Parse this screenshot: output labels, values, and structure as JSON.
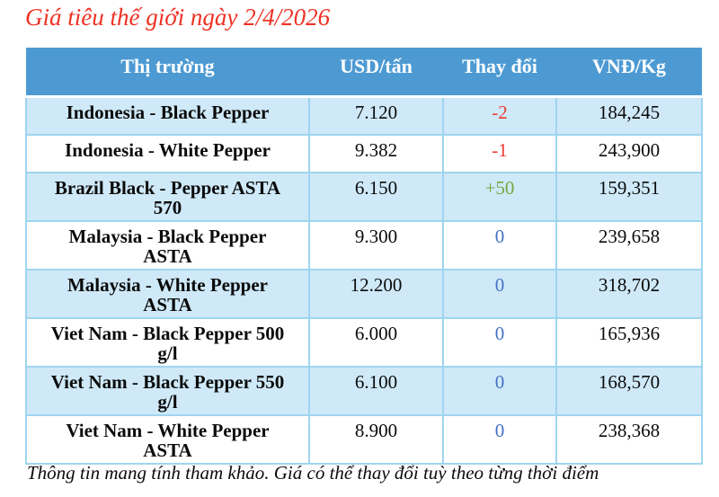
{
  "title": "Giá tiêu thế giới ngày 2/4/2026",
  "disclaimer": "Thông tin mang tính tham khảo. Giá có thể thay đổi tuỳ theo từng thời điểm",
  "colors": {
    "header_bg": "#4d9ad3",
    "row_alt_bg": "#cfe9f8",
    "border": "#9fd5ef",
    "title": "#ee3124",
    "change_down": "#ee3a30",
    "change_up": "#76a841",
    "change_zero": "#4472c4",
    "header_text": "#ffffff",
    "body_text": "#0b0b0b"
  },
  "chart_data": {
    "type": "table",
    "title": "Giá tiêu thế giới ngày 2/4/2026",
    "columns": [
      "Thị trường",
      "USD/tấn",
      "Thay đổi",
      "VNĐ/Kg"
    ],
    "rows": [
      {
        "market": "Indonesia - Black Pepper",
        "usd": "7.120",
        "change": "-2",
        "change_direction": "down",
        "vnd": "184,245"
      },
      {
        "market": "Indonesia - White Pepper",
        "usd": "9.382",
        "change": "-1",
        "change_direction": "down",
        "vnd": "243,900"
      },
      {
        "market": "Brazil Black - Pepper ASTA 570",
        "usd": "6.150",
        "change": "+50",
        "change_direction": "up",
        "vnd": "159,351"
      },
      {
        "market": "Malaysia - Black Pepper ASTA",
        "usd": "9.300",
        "change": "0",
        "change_direction": "zero",
        "vnd": "239,658"
      },
      {
        "market": "Malaysia - White Pepper ASTA",
        "usd": "12.200",
        "change": "0",
        "change_direction": "zero",
        "vnd": "318,702"
      },
      {
        "market": "Viet Nam - Black Pepper 500 g/l",
        "usd": "6.000",
        "change": "0",
        "change_direction": "zero",
        "vnd": "165,936"
      },
      {
        "market": "Viet Nam - Black Pepper 550 g/l",
        "usd": "6.100",
        "change": "0",
        "change_direction": "zero",
        "vnd": "168,570"
      },
      {
        "market": "Viet Nam - White Pepper ASTA",
        "usd": "8.900",
        "change": "0",
        "change_direction": "zero",
        "vnd": "238,368"
      }
    ]
  }
}
